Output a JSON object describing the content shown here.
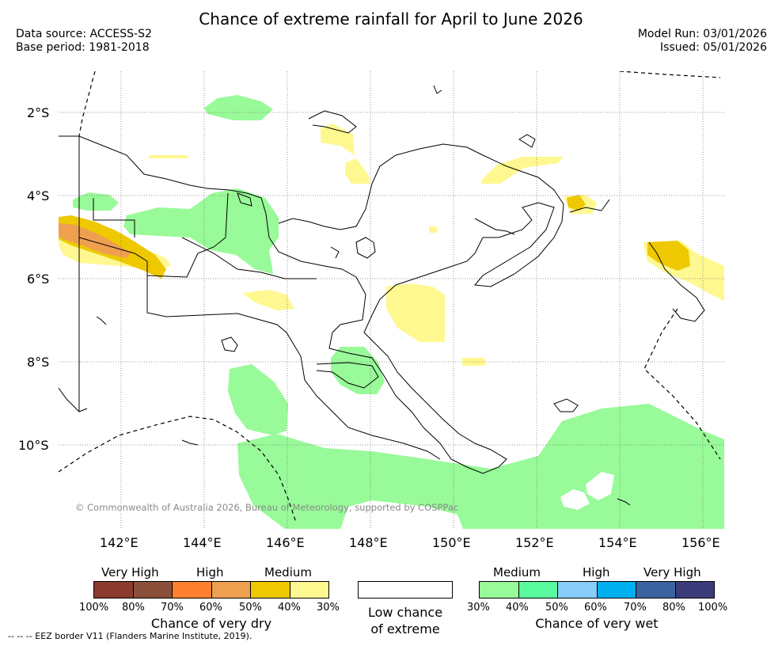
{
  "title": "Chance of extreme rainfall for April to June 2026",
  "meta": {
    "data_source": "Data source: ACCESS-S2",
    "base_period": "Base period: 1981-2018",
    "model_run": "Model Run: 03/01/2026",
    "issued": "Issued: 05/01/2026"
  },
  "axes": {
    "lat_labels": [
      "2°S",
      "4°S",
      "6°S",
      "8°S",
      "10°S"
    ],
    "lon_labels": [
      "142°E",
      "144°E",
      "146°E",
      "148°E",
      "150°E",
      "152°E",
      "154°E",
      "156°E"
    ]
  },
  "copyright": "© Commonwealth of Australia 2026, Bureau of Meteorology, supported by COSPPac",
  "legend": {
    "dry": {
      "levels": [
        "Very High",
        "High",
        "Medium"
      ],
      "colors": [
        "#8b3a2f",
        "#8b503a",
        "#ff8030",
        "#eea050",
        "#eec800",
        "#fff890"
      ],
      "percents": [
        "100%",
        "80%",
        "70%",
        "60%",
        "50%",
        "40%",
        "30%"
      ],
      "caption": "Chance of very dry"
    },
    "neutral": {
      "caption_line1": "Low chance",
      "caption_line2": "of extreme"
    },
    "wet": {
      "levels": [
        "Medium",
        "High",
        "Very High"
      ],
      "colors": [
        "#98fa98",
        "#5afa9e",
        "#88ccfa",
        "#00b0ee",
        "#3a64a0",
        "#3c3c7a"
      ],
      "percents": [
        "30%",
        "40%",
        "50%",
        "60%",
        "70%",
        "80%",
        "100%"
      ],
      "caption": "Chance of very wet"
    }
  },
  "eez_note": "--  --  -- EEZ border V11 (Flanders Marine Institute, 2019)."
}
